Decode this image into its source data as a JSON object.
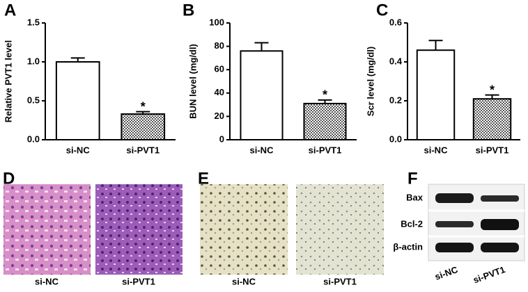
{
  "chart_data": [
    {
      "type": "bar",
      "panel": "A",
      "ylabel": "Relative PVT1 level",
      "categories": [
        "si-NC",
        "si-PVT1"
      ],
      "values": [
        1.0,
        0.33
      ],
      "errors": [
        0.05,
        0.03
      ],
      "colors": [
        "#ffffff",
        "#555555"
      ],
      "hatched": [
        false,
        true
      ],
      "significance": [
        null,
        "*"
      ],
      "ylim": [
        0,
        1.5
      ],
      "yticks": [
        {
          "value": 0,
          "label": "0.0"
        },
        {
          "value": 0.5,
          "label": "0.5"
        },
        {
          "value": 1,
          "label": "1.0"
        },
        {
          "value": 1.5,
          "label": "1.5"
        }
      ]
    },
    {
      "type": "bar",
      "panel": "B",
      "ylabel": "BUN level (mg/dl)",
      "categories": [
        "si-NC",
        "si-PVT1"
      ],
      "values": [
        76,
        31
      ],
      "errors": [
        7,
        3
      ],
      "colors": [
        "#ffffff",
        "#555555"
      ],
      "hatched": [
        false,
        true
      ],
      "significance": [
        null,
        "*"
      ],
      "ylim": [
        0,
        100
      ],
      "yticks": [
        0,
        20,
        40,
        60,
        80,
        100
      ]
    },
    {
      "type": "bar",
      "panel": "C",
      "ylabel": "Scr level (mg/dl)",
      "categories": [
        "si-NC",
        "si-PVT1"
      ],
      "values": [
        0.46,
        0.21
      ],
      "errors": [
        0.05,
        0.02
      ],
      "colors": [
        "#ffffff",
        "#555555"
      ],
      "hatched": [
        false,
        true
      ],
      "significance": [
        null,
        "*"
      ],
      "ylim": [
        0,
        0.6
      ],
      "yticks": [
        {
          "value": 0,
          "label": "0.0"
        },
        {
          "value": 0.2,
          "label": "0.2"
        },
        {
          "value": 0.4,
          "label": "0.4"
        },
        {
          "value": 0.6,
          "label": "0.6"
        }
      ]
    }
  ],
  "images": {
    "he": {
      "panel": "D",
      "captions": [
        "si-NC",
        "si-PVT1"
      ]
    },
    "ihc": {
      "panel": "E",
      "captions": [
        "si-NC",
        "si-PVT1"
      ]
    },
    "blot": {
      "panel": "F",
      "rows": [
        "Bax",
        "Bcl-2",
        "β-actin"
      ],
      "columns": [
        "si-NC",
        "si-PVT1"
      ]
    }
  }
}
